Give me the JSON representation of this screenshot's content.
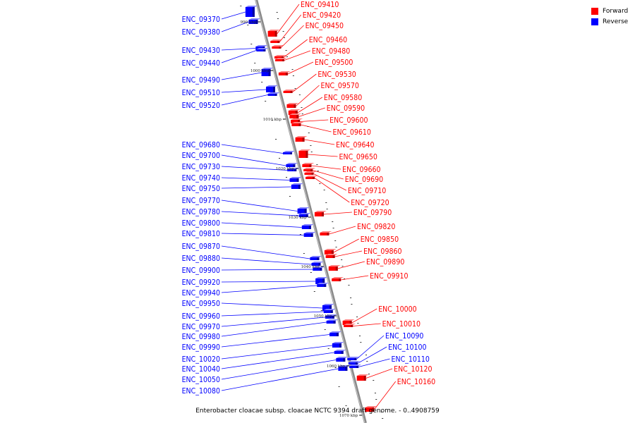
{
  "legend": {
    "forward": {
      "label": "Forward",
      "color": "#ff0000"
    },
    "reverse": {
      "label": "Reverse",
      "color": "#0000ff"
    }
  },
  "caption": "Enterobacter cloacae subsp. cloacae NCTC 9394 draft genome. - 0..4908759",
  "ticks": [
    "990 kbp",
    "1000 kbp",
    "1010 kbp",
    "1020 kbp",
    "1030 kbp",
    "1040 kbp",
    "1050 kbp",
    "1060 kbp",
    "1070 kbp"
  ],
  "genes": {
    "reverse": [
      "ENC_09370",
      "ENC_09380",
      "ENC_09430",
      "ENC_09440",
      "ENC_09490",
      "ENC_09510",
      "ENC_09520",
      "ENC_09680",
      "ENC_09700",
      "ENC_09730",
      "ENC_09740",
      "ENC_09750",
      "ENC_09770",
      "ENC_09780",
      "ENC_09800",
      "ENC_09810",
      "ENC_09870",
      "ENC_09880",
      "ENC_09900",
      "ENC_09920",
      "ENC_09940",
      "ENC_09950",
      "ENC_09960",
      "ENC_09970",
      "ENC_09980",
      "ENC_09990",
      "ENC_10020",
      "ENC_10040",
      "ENC_10050",
      "ENC_10080"
    ],
    "forward": [
      "ENC_09410",
      "ENC_09420",
      "ENC_09450",
      "ENC_09460",
      "ENC_09480",
      "ENC_09500",
      "ENC_09530",
      "ENC_09570",
      "ENC_09580",
      "ENC_09590",
      "ENC_09600",
      "ENC_09610",
      "ENC_09640",
      "ENC_09650",
      "ENC_09660",
      "ENC_09690",
      "ENC_09710",
      "ENC_09720",
      "ENC_09790",
      "ENC_09820",
      "ENC_09850",
      "ENC_09860",
      "ENC_09890",
      "ENC_09910",
      "ENC_10000",
      "ENC_10010",
      "ENC_10120",
      "ENC_10160"
    ],
    "reverse_right": [
      "ENC_10090",
      "ENC_10100",
      "ENC_10110"
    ]
  }
}
